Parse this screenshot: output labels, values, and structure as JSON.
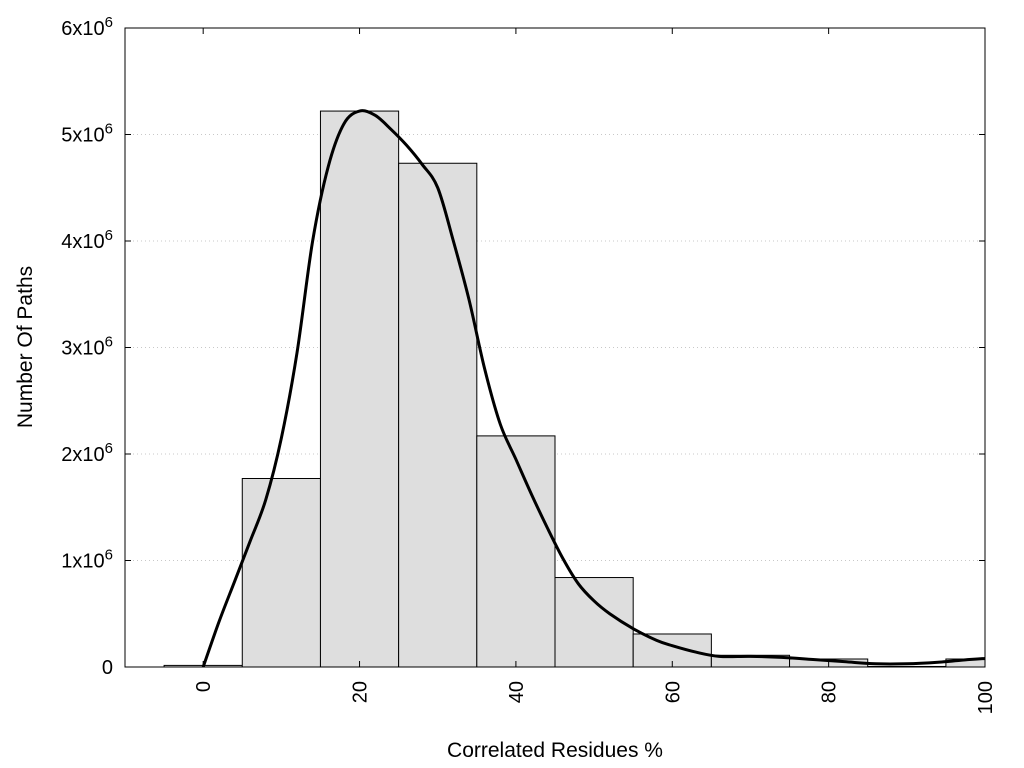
{
  "chart_data": {
    "type": "bar",
    "title": "",
    "xlabel": "Correlated Residues %",
    "ylabel": "Number Of Paths",
    "xlim": [
      -10,
      100
    ],
    "ylim": [
      0,
      6000000
    ],
    "grid": true,
    "bar_width": 10,
    "bar_color": "#dedede",
    "bar_edge_color": "#000000",
    "line_color": "#000000",
    "categories": [
      0,
      10,
      20,
      30,
      40,
      50,
      60,
      70,
      80,
      90,
      100
    ],
    "series": [
      {
        "type": "bar",
        "x": [
          0,
          10,
          20,
          30,
          40,
          50,
          60,
          70,
          80,
          90,
          100
        ],
        "values": [
          15000,
          1770000,
          5220000,
          4730000,
          2170000,
          840000,
          310000,
          110000,
          75000,
          5000,
          75000
        ]
      },
      {
        "type": "line",
        "x": [
          0,
          2,
          4,
          6,
          8,
          10,
          12,
          14,
          16,
          18,
          20,
          22,
          24,
          26,
          28,
          30,
          32,
          34,
          36,
          38,
          40,
          42,
          44,
          46,
          48,
          50,
          52,
          55,
          58,
          60,
          63,
          66,
          70,
          74,
          78,
          82,
          86,
          90,
          94,
          98,
          100
        ],
        "values": [
          0,
          420000,
          800000,
          1180000,
          1570000,
          2150000,
          2950000,
          4000000,
          4700000,
          5100000,
          5220000,
          5180000,
          5050000,
          4900000,
          4720000,
          4500000,
          4000000,
          3450000,
          2800000,
          2280000,
          1950000,
          1620000,
          1310000,
          1020000,
          780000,
          620000,
          500000,
          360000,
          250000,
          200000,
          140000,
          100000,
          100000,
          90000,
          70000,
          50000,
          30000,
          30000,
          45000,
          70000,
          80000
        ]
      }
    ],
    "xticks": [
      "0",
      "20",
      "40",
      "60",
      "80",
      "100"
    ],
    "xtick_values": [
      0,
      20,
      40,
      60,
      80,
      100
    ],
    "yticks": [
      {
        "value": 0,
        "base": "0",
        "exp": ""
      },
      {
        "value": 1000000,
        "base": "1x10",
        "exp": "6"
      },
      {
        "value": 2000000,
        "base": "2x10",
        "exp": "6"
      },
      {
        "value": 3000000,
        "base": "3x10",
        "exp": "6"
      },
      {
        "value": 4000000,
        "base": "4x10",
        "exp": "6"
      },
      {
        "value": 5000000,
        "base": "5x10",
        "exp": "6"
      },
      {
        "value": 6000000,
        "base": "6x10",
        "exp": "6"
      }
    ]
  }
}
